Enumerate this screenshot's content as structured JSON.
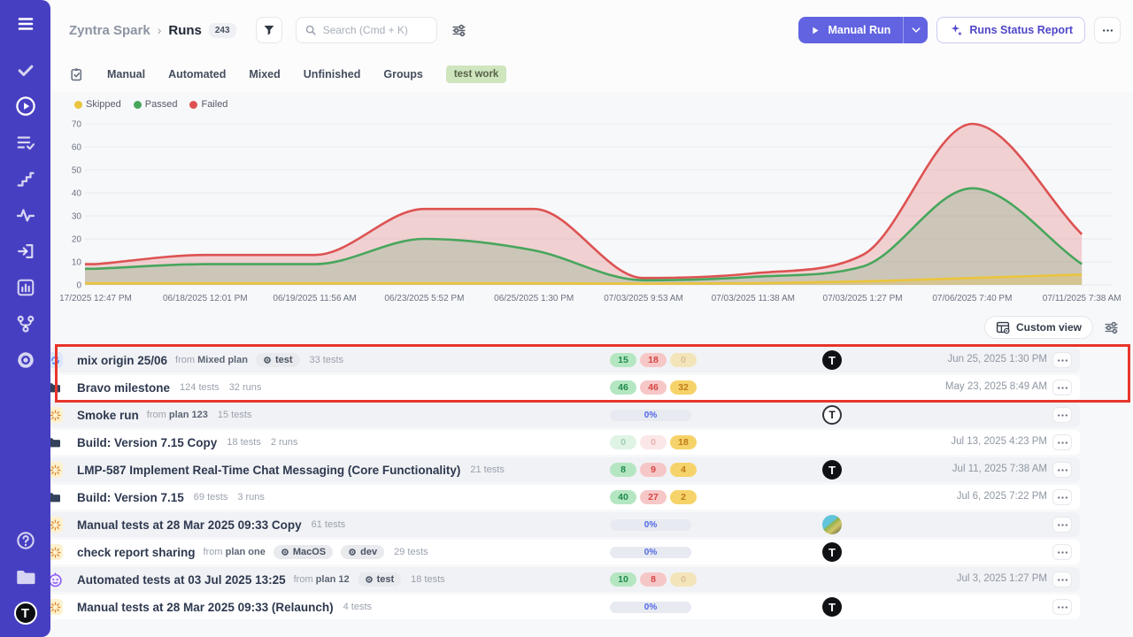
{
  "sidebar": {
    "menu_icon": "menu",
    "items": [
      {
        "name": "results",
        "icon": "check",
        "active": false
      },
      {
        "name": "runs",
        "icon": "play-circle",
        "active": true
      },
      {
        "name": "test-plans",
        "icon": "list-check",
        "active": false
      },
      {
        "name": "milestones",
        "icon": "steps",
        "active": false
      },
      {
        "name": "analytics",
        "icon": "activity",
        "active": false
      },
      {
        "name": "imports",
        "icon": "sign-in",
        "active": false
      },
      {
        "name": "reports",
        "icon": "bar-chart",
        "active": false
      },
      {
        "name": "branches",
        "icon": "branch",
        "active": false
      },
      {
        "name": "settings",
        "icon": "gear",
        "active": false
      }
    ],
    "bottom_items": [
      {
        "name": "help",
        "icon": "help-circle"
      },
      {
        "name": "projects",
        "icon": "folder-fill"
      }
    ],
    "logo_letter": "T"
  },
  "header": {
    "breadcrumb": {
      "project": "Zyntra Spark",
      "separator": "›",
      "page": "Runs",
      "count": "243"
    },
    "filter_icon": "funnel",
    "search": {
      "placeholder": "Search (Cmd + K)",
      "icon": "magnifier"
    },
    "tune_icon": "sliders",
    "manual_run": {
      "label": "Manual Run",
      "icon": "play-small",
      "caret_icon": "chevron-down"
    },
    "report_button": {
      "label": "Runs Status Report",
      "icon": "sparkles"
    },
    "more_icon": "dots-h"
  },
  "tabs": {
    "icon": "clipboard-check",
    "items": [
      "Manual",
      "Automated",
      "Mixed",
      "Unfinished",
      "Groups"
    ],
    "filter_badge": "test work"
  },
  "chart_data": {
    "type": "area",
    "title": "Runs results over time",
    "legend_position": "top-left",
    "grid": true,
    "ylim": [
      0,
      70
    ],
    "yticks": [
      0,
      10,
      20,
      30,
      40,
      50,
      60,
      70
    ],
    "x": [
      "17/2025 12:47 PM",
      "06/18/2025 12:01 PM",
      "06/19/2025 11:56 AM",
      "06/23/2025 5:52 PM",
      "06/25/2025 1:30 PM",
      "07/03/2025 9:53 AM",
      "07/03/2025 11:38 AM",
      "07/03/2025 1:27 PM",
      "07/06/2025 7:40 PM",
      "07/11/2025 7:38 AM"
    ],
    "legend": [
      {
        "label": "Skipped",
        "color": "#eac43d"
      },
      {
        "label": "Passed",
        "color": "#47a65c"
      },
      {
        "label": "Failed",
        "color": "#dd5252"
      }
    ],
    "series": [
      {
        "name": "Failed",
        "color": "#dd5252",
        "fill": "rgba(221,82,82,0.24)",
        "values": [
          9,
          13,
          13,
          33,
          33,
          3,
          5,
          13,
          70,
          22
        ]
      },
      {
        "name": "Passed",
        "color": "#47a65c",
        "fill": "rgba(71,166,92,0.22)",
        "values": [
          7,
          9,
          9,
          20,
          15,
          2,
          3.5,
          8,
          42,
          9
        ]
      },
      {
        "name": "Skipped",
        "color": "#eac43d",
        "fill": "rgba(234,196,61,0.30)",
        "values": [
          0.7,
          0.7,
          0.7,
          0.7,
          0.7,
          0.5,
          0.7,
          1.5,
          3,
          4.5
        ]
      }
    ]
  },
  "toolbar": {
    "custom_view_label": "Custom view",
    "custom_view_icon": "table-gear",
    "tune_icon": "sliders"
  },
  "runs": [
    {
      "pinned": true,
      "status": "blocked",
      "chevron": false,
      "type": "sync",
      "title": "mix origin 25/06",
      "from_label": "from",
      "from_plan": "Mixed plan",
      "env": [
        "test"
      ],
      "meta": [
        "33 tests"
      ],
      "counts": [
        {
          "value": "15",
          "kind": "passed",
          "faint": false
        },
        {
          "value": "18",
          "kind": "failed",
          "faint": false
        },
        {
          "value": "0",
          "kind": "skipped",
          "faint": true
        }
      ],
      "progress": null,
      "avatar": "black-t",
      "date": "Jun 25, 2025 1:30 PM"
    },
    {
      "pinned": true,
      "status": null,
      "chevron": true,
      "type": "folder",
      "title": "Bravo milestone",
      "from_label": "",
      "from_plan": null,
      "env": [],
      "meta": [
        "124 tests",
        "32 runs"
      ],
      "counts": [
        {
          "value": "46",
          "kind": "passed",
          "faint": false
        },
        {
          "value": "46",
          "kind": "failed",
          "faint": false
        },
        {
          "value": "32",
          "kind": "skipped",
          "faint": false
        }
      ],
      "progress": null,
      "avatar": null,
      "date": "May 23, 2025 8:49 AM"
    },
    {
      "pinned": false,
      "status": "neutral",
      "chevron": false,
      "type": "manual",
      "title": "Smoke run",
      "from_label": "from",
      "from_plan": "plan 123",
      "env": [],
      "meta": [
        "15 tests"
      ],
      "counts": null,
      "progress": "0%",
      "avatar": "outline-t",
      "date": ""
    },
    {
      "pinned": false,
      "status": null,
      "chevron": true,
      "type": "folder",
      "title": "Build: Version 7.15 Copy",
      "from_label": "",
      "from_plan": null,
      "env": [],
      "meta": [
        "18 tests",
        "2 runs"
      ],
      "counts": [
        {
          "value": "0",
          "kind": "passed",
          "faint": true
        },
        {
          "value": "0",
          "kind": "failed",
          "faint": true
        },
        {
          "value": "18",
          "kind": "skipped",
          "faint": false
        }
      ],
      "progress": null,
      "avatar": null,
      "date": "Jul 13, 2025 4:23 PM"
    },
    {
      "pinned": false,
      "status": "blocked",
      "chevron": false,
      "type": "manual",
      "title": "LMP-587 Implement Real-Time Chat Messaging (Core Functionality)",
      "from_label": "",
      "from_plan": null,
      "env": [],
      "meta": [
        "21 tests"
      ],
      "counts": [
        {
          "value": "8",
          "kind": "passed",
          "faint": false
        },
        {
          "value": "9",
          "kind": "failed",
          "faint": false
        },
        {
          "value": "4",
          "kind": "skipped",
          "faint": false
        }
      ],
      "progress": null,
      "avatar": "black-t",
      "date": "Jul 11, 2025 7:38 AM"
    },
    {
      "pinned": false,
      "status": null,
      "chevron": true,
      "type": "folder",
      "title": "Build: Version 7.15",
      "from_label": "",
      "from_plan": null,
      "env": [],
      "meta": [
        "69 tests",
        "3 runs"
      ],
      "counts": [
        {
          "value": "40",
          "kind": "passed",
          "faint": false
        },
        {
          "value": "27",
          "kind": "failed",
          "faint": false
        },
        {
          "value": "2",
          "kind": "skipped",
          "faint": false
        }
      ],
      "progress": null,
      "avatar": null,
      "date": "Jul 6, 2025 7:22 PM"
    },
    {
      "pinned": false,
      "status": "neutral",
      "chevron": false,
      "type": "manual",
      "title": "Manual tests at 28 Mar 2025 09:33 Copy",
      "from_label": "",
      "from_plan": null,
      "env": [],
      "meta": [
        "61 tests"
      ],
      "counts": null,
      "progress": "0%",
      "avatar": "photo",
      "date": ""
    },
    {
      "pinned": false,
      "status": "neutral",
      "chevron": false,
      "type": "manual",
      "title": "check report sharing",
      "from_label": "from",
      "from_plan": "plan one",
      "env": [
        "MacOS",
        "dev"
      ],
      "meta": [
        "29 tests"
      ],
      "counts": null,
      "progress": "0%",
      "avatar": "black-t",
      "date": ""
    },
    {
      "pinned": false,
      "status": "blocked",
      "chevron": false,
      "type": "auto",
      "title": "Automated tests at 03 Jul 2025 13:25",
      "from_label": "from",
      "from_plan": "plan 12",
      "env": [
        "test"
      ],
      "meta": [
        "18 tests"
      ],
      "counts": [
        {
          "value": "10",
          "kind": "passed",
          "faint": false
        },
        {
          "value": "8",
          "kind": "failed",
          "faint": false
        },
        {
          "value": "0",
          "kind": "skipped",
          "faint": true
        }
      ],
      "progress": null,
      "avatar": null,
      "date": "Jul 3, 2025 1:27 PM"
    },
    {
      "pinned": false,
      "status": "neutral",
      "chevron": false,
      "type": "manual",
      "title": "Manual tests at 28 Mar 2025 09:33 (Relaunch)",
      "from_label": "",
      "from_plan": null,
      "env": [],
      "meta": [
        "4 tests"
      ],
      "counts": null,
      "progress": "0%",
      "avatar": "black-t",
      "date": ""
    }
  ],
  "annotation": {
    "color": "#e8352c"
  }
}
